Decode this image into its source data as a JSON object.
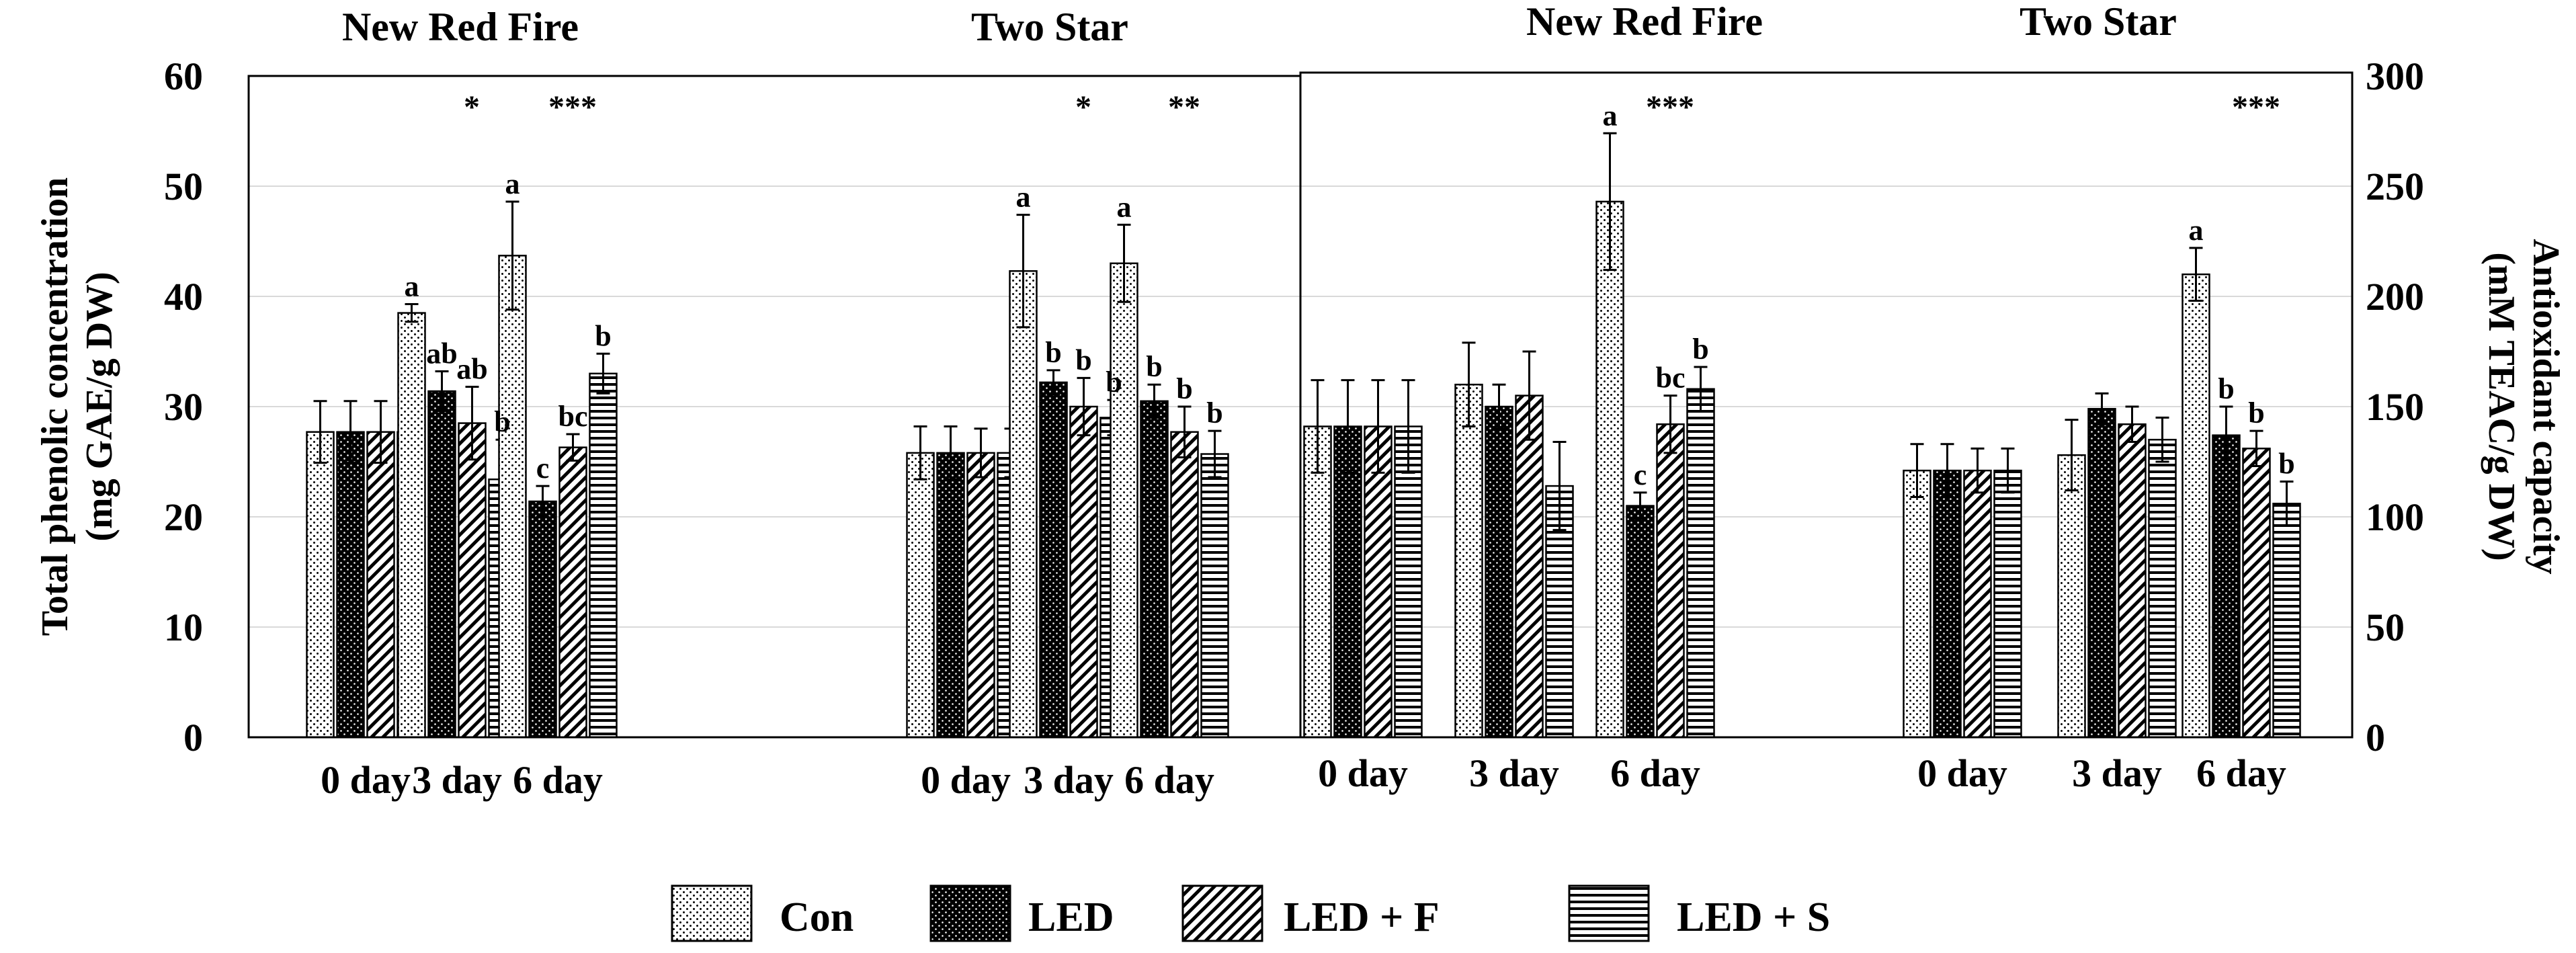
{
  "chart_data": [
    {
      "type": "bar",
      "panel": "left",
      "ylabel_line1": "Total phenolic concentration",
      "ylabel_line2": "(mg GAE/g DW)",
      "ylim": [
        0,
        60
      ],
      "yticks": [
        "0",
        "10",
        "20",
        "30",
        "40",
        "50",
        "60"
      ],
      "grid": true,
      "groups": [
        {
          "title": "New Red Fire",
          "categories": [
            "0 day",
            "3 day",
            "6 day"
          ],
          "stars": [
            "",
            "*",
            "***"
          ],
          "series": [
            {
              "name": "Con",
              "values": [
                27.7,
                38.5,
                43.7
              ],
              "errors": [
                2.8,
                0.8,
                4.9
              ],
              "letters": [
                "",
                "a",
                "a"
              ]
            },
            {
              "name": "LED",
              "values": [
                27.7,
                31.4,
                21.4
              ],
              "errors": [
                2.8,
                1.8,
                1.4
              ],
              "letters": [
                "",
                "ab",
                "c"
              ]
            },
            {
              "name": "LED + F",
              "values": [
                27.7,
                28.5,
                26.3
              ],
              "errors": [
                2.8,
                3.3,
                1.2
              ],
              "letters": [
                "",
                "ab",
                "bc"
              ]
            },
            {
              "name": "LED + S",
              "values": [
                27.7,
                23.4,
                33.0
              ],
              "errors": [
                2.8,
                3.6,
                1.8
              ],
              "letters": [
                "",
                "b",
                "b"
              ]
            }
          ]
        },
        {
          "title": "Two Star",
          "categories": [
            "0 day",
            "3 day",
            "6 day"
          ],
          "stars": [
            "",
            "*",
            "**"
          ],
          "series": [
            {
              "name": "Con",
              "values": [
                25.8,
                42.3,
                43.0
              ],
              "errors": [
                2.4,
                5.1,
                3.5
              ],
              "letters": [
                "",
                "a",
                "a"
              ]
            },
            {
              "name": "LED",
              "values": [
                25.8,
                32.2,
                30.5
              ],
              "errors": [
                2.4,
                1.1,
                1.5
              ],
              "letters": [
                "",
                "b",
                "b"
              ]
            },
            {
              "name": "LED + F",
              "values": [
                25.8,
                30.0,
                27.7
              ],
              "errors": [
                2.2,
                2.6,
                2.3
              ],
              "letters": [
                "",
                "b",
                "b"
              ]
            },
            {
              "name": "LED + S",
              "values": [
                25.8,
                29.0,
                25.7
              ],
              "errors": [
                2.2,
                1.6,
                2.1
              ],
              "letters": [
                "",
                "b",
                "b"
              ]
            }
          ]
        }
      ]
    },
    {
      "type": "bar",
      "panel": "right",
      "ylabel_line1": "Antioxidant capacity",
      "ylabel_line2": "(mM TEAC/g DW)",
      "ylim": [
        0,
        300
      ],
      "yticks": [
        "0",
        "50",
        "100",
        "150",
        "200",
        "250",
        "300"
      ],
      "grid": true,
      "groups": [
        {
          "title": "New Red Fire",
          "categories": [
            "0 day",
            "3 day",
            "6 day"
          ],
          "stars": [
            "",
            "",
            "***"
          ],
          "series": [
            {
              "name": "Con",
              "values": [
                141,
                160,
                243
              ],
              "errors": [
                21,
                19,
                31
              ],
              "letters": [
                "",
                "",
                "a"
              ]
            },
            {
              "name": "LED",
              "values": [
                141,
                150,
                105
              ],
              "errors": [
                21,
                10,
                6
              ],
              "letters": [
                "",
                "",
                "c"
              ]
            },
            {
              "name": "LED + F",
              "values": [
                141,
                155,
                142
              ],
              "errors": [
                21,
                20,
                13
              ],
              "letters": [
                "",
                "",
                "bc"
              ]
            },
            {
              "name": "LED + S",
              "values": [
                141,
                114,
                158
              ],
              "errors": [
                21,
                20,
                10
              ],
              "letters": [
                "",
                "",
                "b"
              ]
            }
          ]
        },
        {
          "title": "Two Star",
          "categories": [
            "0 day",
            "3 day",
            "6 day"
          ],
          "stars": [
            "",
            "",
            "***"
          ],
          "series": [
            {
              "name": "Con",
              "values": [
                121,
                128,
                210
              ],
              "errors": [
                12,
                16,
                12
              ],
              "letters": [
                "",
                "",
                "a"
              ]
            },
            {
              "name": "LED",
              "values": [
                121,
                149,
                137
              ],
              "errors": [
                12,
                7,
                13
              ],
              "letters": [
                "",
                "",
                "b"
              ]
            },
            {
              "name": "LED + F",
              "values": [
                121,
                142,
                131
              ],
              "errors": [
                10,
                8,
                8
              ],
              "letters": [
                "",
                "",
                "b"
              ]
            },
            {
              "name": "LED + S",
              "values": [
                121,
                135,
                106
              ],
              "errors": [
                10,
                10,
                10
              ],
              "letters": [
                "",
                "",
                "b"
              ]
            }
          ]
        }
      ]
    }
  ],
  "legend": [
    {
      "label": "Con",
      "pattern": "dots"
    },
    {
      "label": "LED",
      "pattern": "dense-dark"
    },
    {
      "label": "LED + F",
      "pattern": "diagonal"
    },
    {
      "label": "LED + S",
      "pattern": "horizontal"
    }
  ],
  "colors": {
    "ink": "#000000",
    "grid": "#d9d9d9",
    "background": "#ffffff"
  }
}
